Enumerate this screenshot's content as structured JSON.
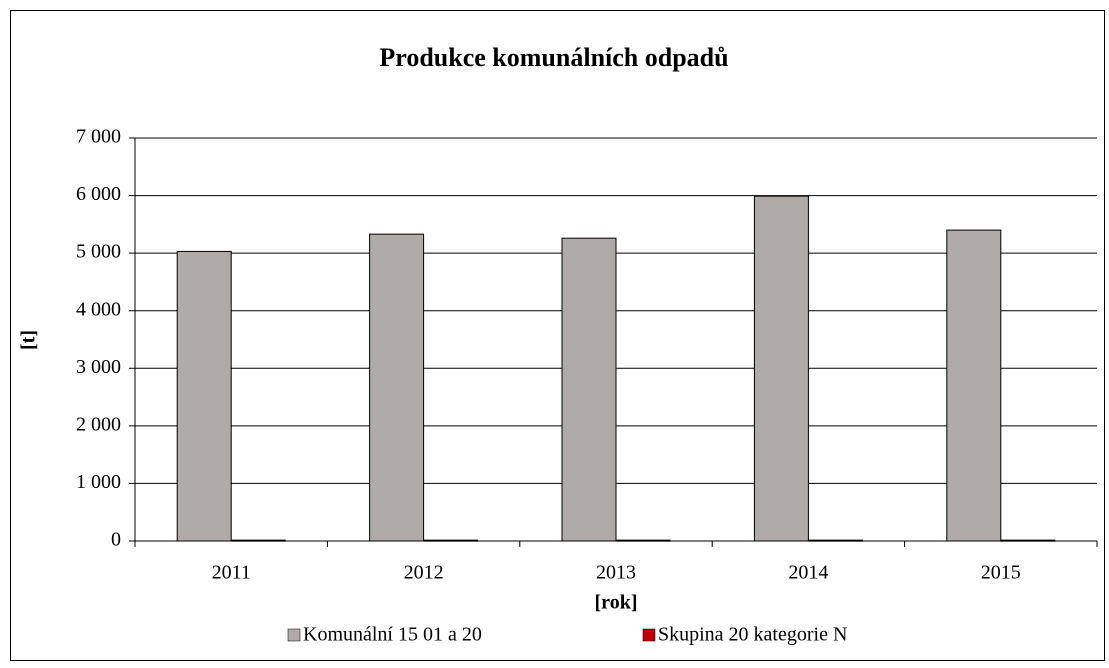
{
  "chart_data": {
    "type": "bar",
    "title": "Produkce komunálních odpadů",
    "xlabel": "[rok]",
    "ylabel": "[t]",
    "categories": [
      "2011",
      "2012",
      "2013",
      "2014",
      "2015"
    ],
    "series": [
      {
        "name": "Komunální 15 01 a 20",
        "color": "#b0aba9",
        "values": [
          5030,
          5330,
          5260,
          5990,
          5400
        ]
      },
      {
        "name": "Skupina 20 kategorie N",
        "color": "#c00000",
        "values": [
          15,
          15,
          15,
          15,
          15
        ]
      }
    ],
    "ylim": [
      0,
      7000
    ],
    "yticks": [
      0,
      {
        "value": 1000,
        "label": "1 000"
      },
      {
        "value": 2000,
        "label": "2 000"
      },
      {
        "value": 3000,
        "label": "3 000"
      },
      {
        "value": 4000,
        "label": "4 000"
      },
      {
        "value": 5000,
        "label": "5 000"
      },
      {
        "value": 6000,
        "label": "6 000"
      },
      {
        "value": 7000,
        "label": "7 000"
      }
    ],
    "grid": true,
    "legend": "bottom"
  }
}
